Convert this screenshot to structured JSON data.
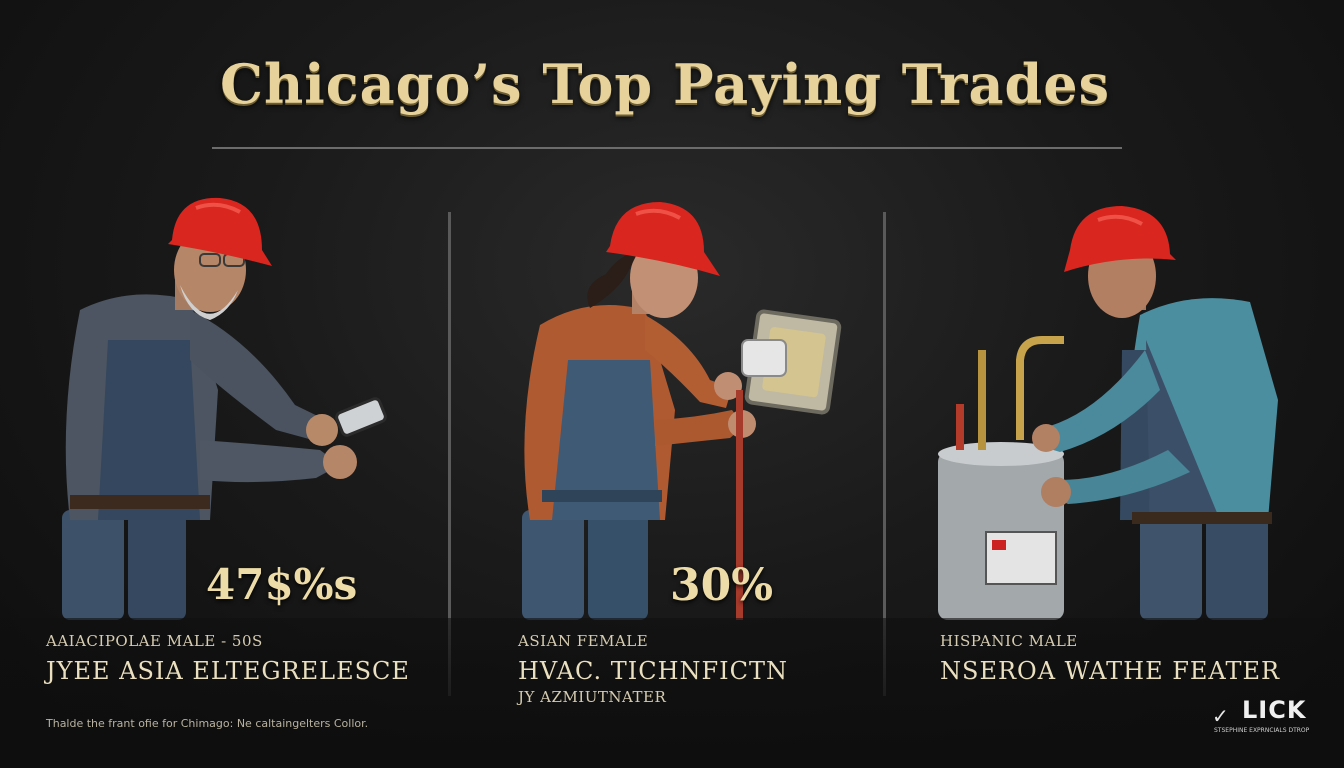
{
  "header": {
    "title": "Chicago’s Top Paying Trades"
  },
  "panels": [
    {
      "stat": "47$%s",
      "subtitle": "AAIACIPOLAE MALE - 50s",
      "trade": "JYEE ASIA ELTEGRELESCE"
    },
    {
      "stat": "30%",
      "subtitle": "ASIAN FEMALE",
      "trade": "HVAC. TICHNFICTN",
      "trade_line2": "JY AZMIUTNATER"
    },
    {
      "subtitle": "HISPANIC MALE",
      "trade": "NSEROA WATHE FEATER"
    }
  ],
  "footer": {
    "note": "Thalde the frant ofie for Chimago: Ne caltaingelters Collor.",
    "brand_name": "LICK",
    "brand_tagline": "STSEPHINE EXPRNCIALS DTROP"
  },
  "colors": {
    "background": "#121212",
    "title": "#e6d29a",
    "hardhat": "#d9261f",
    "divider": "#5a5a5a"
  },
  "icons": {
    "brand_mark": "checkmark-icon"
  }
}
